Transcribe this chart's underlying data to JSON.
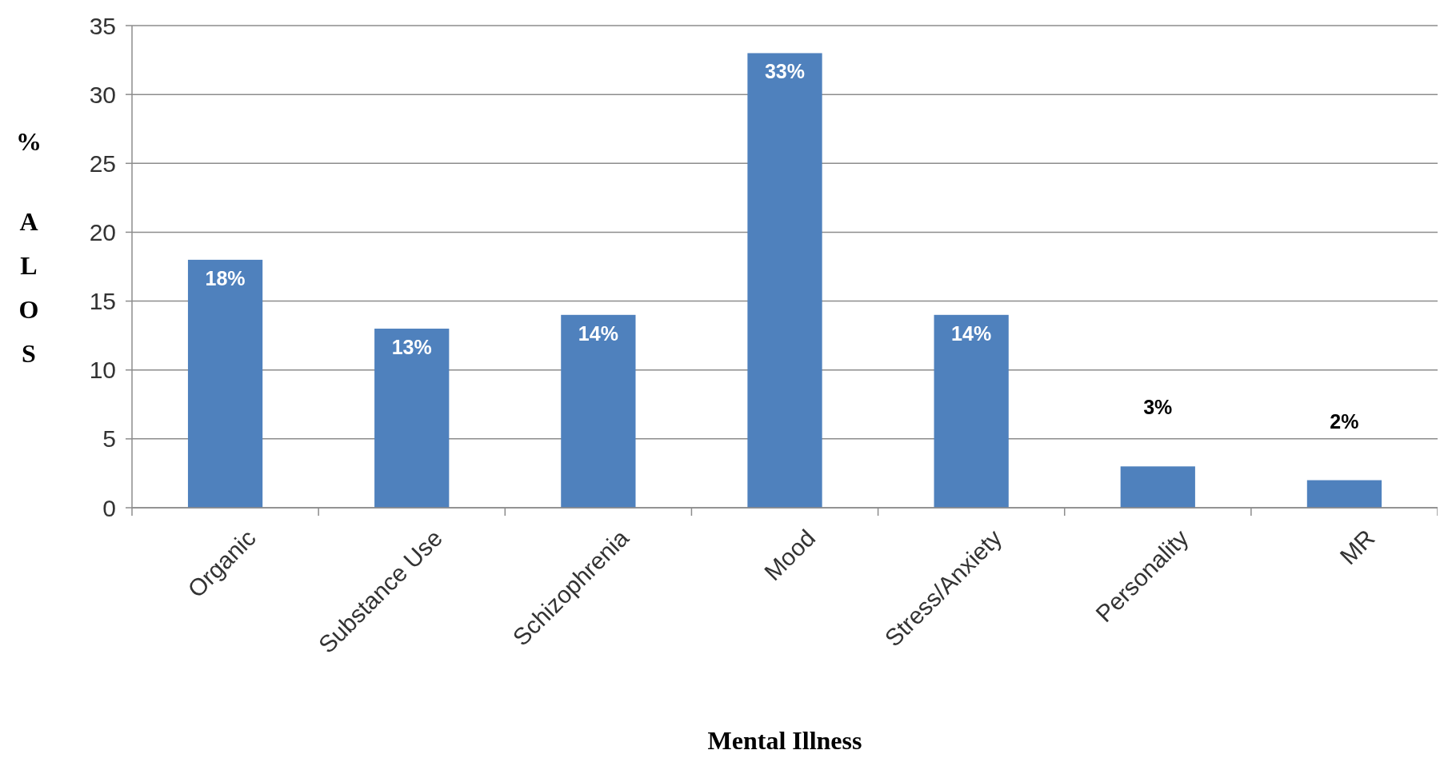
{
  "chart_data": {
    "type": "bar",
    "xlabel": "Mental Illness",
    "ylabel": "% ALOS",
    "categories": [
      "Organic",
      "Substance Use",
      "Schizophrenia",
      "Mood",
      "Stress/Anxiety",
      "Personality",
      "MR"
    ],
    "values": [
      18,
      13,
      14,
      33,
      14,
      3,
      2
    ],
    "value_labels": [
      "18%",
      "13%",
      "14%",
      "33%",
      "14%",
      "3%",
      "2%"
    ],
    "color": "#4f81bd",
    "ylim": [
      0,
      35
    ],
    "yticks": [
      0,
      5,
      10,
      15,
      20,
      25,
      30,
      35
    ],
    "grid": "y"
  }
}
